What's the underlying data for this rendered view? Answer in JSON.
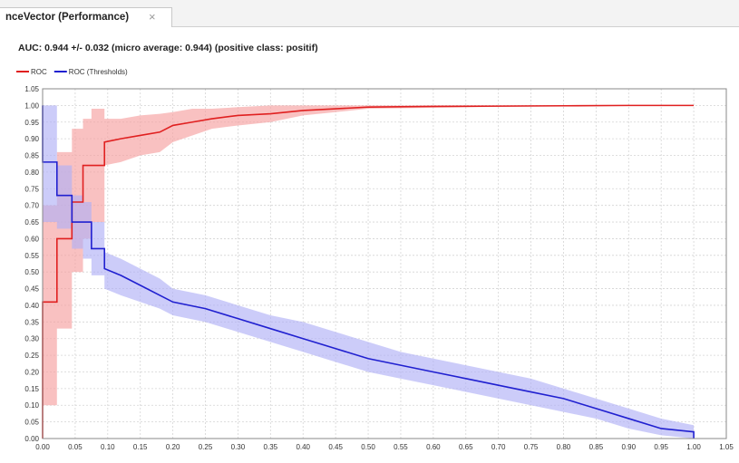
{
  "tab": {
    "title": "nceVector (Performance)",
    "close_icon": "×"
  },
  "chart_title": "AUC: 0.944 +/- 0.032 (micro average: 0.944) (positive class: positif)",
  "chart_data": {
    "type": "line",
    "title": "AUC: 0.944 +/- 0.032 (micro average: 0.944) (positive class: positif)",
    "xlim": [
      0.0,
      1.05
    ],
    "ylim": [
      0.0,
      1.05
    ],
    "x_ticks": [
      "0.00",
      "0.05",
      "0.10",
      "0.15",
      "0.20",
      "0.25",
      "0.30",
      "0.35",
      "0.40",
      "0.45",
      "0.50",
      "0.55",
      "0.60",
      "0.65",
      "0.70",
      "0.75",
      "0.80",
      "0.85",
      "0.90",
      "0.95",
      "1.00",
      "1.05"
    ],
    "y_ticks": [
      "0.00",
      "0.05",
      "0.10",
      "0.15",
      "0.20",
      "0.25",
      "0.30",
      "0.35",
      "0.40",
      "0.45",
      "0.50",
      "0.55",
      "0.60",
      "0.65",
      "0.70",
      "0.75",
      "0.80",
      "0.85",
      "0.90",
      "0.95",
      "1.00",
      "1.05"
    ],
    "grid": true,
    "legend_position": "top-left",
    "series": [
      {
        "name": "ROC",
        "color": "#e02020",
        "band_color": "#f6a0a0",
        "x": [
          0.0,
          0.0,
          0.022,
          0.022,
          0.045,
          0.045,
          0.062,
          0.062,
          0.075,
          0.075,
          0.095,
          0.095,
          0.12,
          0.15,
          0.18,
          0.2,
          0.23,
          0.26,
          0.3,
          0.35,
          0.4,
          0.45,
          0.5,
          0.6,
          0.7,
          0.8,
          0.9,
          1.0
        ],
        "y": [
          0.0,
          0.41,
          0.41,
          0.6,
          0.6,
          0.71,
          0.71,
          0.82,
          0.82,
          0.82,
          0.82,
          0.89,
          0.9,
          0.91,
          0.92,
          0.94,
          0.95,
          0.96,
          0.97,
          0.975,
          0.985,
          0.99,
          0.995,
          0.997,
          0.998,
          0.999,
          1.0,
          1.0
        ],
        "upper": [
          0.0,
          0.7,
          0.7,
          0.86,
          0.86,
          0.93,
          0.93,
          0.96,
          0.96,
          0.99,
          0.99,
          0.96,
          0.96,
          0.97,
          0.975,
          0.98,
          0.99,
          0.99,
          0.995,
          1.0,
          1.0,
          1.0,
          1.0,
          1.0,
          1.0,
          1.0,
          1.0,
          1.0
        ],
        "lower": [
          0.0,
          0.1,
          0.1,
          0.33,
          0.33,
          0.5,
          0.5,
          0.6,
          0.6,
          0.65,
          0.65,
          0.82,
          0.83,
          0.85,
          0.86,
          0.89,
          0.91,
          0.93,
          0.94,
          0.95,
          0.97,
          0.98,
          0.99,
          0.993,
          0.996,
          0.998,
          1.0,
          1.0
        ]
      },
      {
        "name": "ROC (Thresholds)",
        "color": "#2020d0",
        "band_color": "#b0b0f6",
        "x": [
          0.0,
          0.0,
          0.022,
          0.022,
          0.045,
          0.045,
          0.062,
          0.062,
          0.075,
          0.075,
          0.095,
          0.095,
          0.12,
          0.15,
          0.18,
          0.2,
          0.25,
          0.3,
          0.35,
          0.4,
          0.45,
          0.5,
          0.55,
          0.6,
          0.65,
          0.7,
          0.75,
          0.8,
          0.85,
          0.9,
          0.95,
          1.0,
          1.0
        ],
        "y": [
          1.0,
          0.83,
          0.83,
          0.73,
          0.73,
          0.65,
          0.65,
          0.65,
          0.65,
          0.57,
          0.57,
          0.51,
          0.49,
          0.46,
          0.43,
          0.41,
          0.39,
          0.36,
          0.33,
          0.3,
          0.27,
          0.24,
          0.22,
          0.2,
          0.18,
          0.16,
          0.14,
          0.12,
          0.09,
          0.06,
          0.03,
          0.02,
          0.0
        ],
        "upper": [
          1.0,
          1.0,
          1.0,
          0.82,
          0.82,
          0.73,
          0.73,
          0.71,
          0.71,
          0.65,
          0.65,
          0.56,
          0.54,
          0.51,
          0.48,
          0.45,
          0.43,
          0.4,
          0.37,
          0.35,
          0.32,
          0.29,
          0.26,
          0.24,
          0.22,
          0.2,
          0.18,
          0.15,
          0.12,
          0.09,
          0.06,
          0.04,
          0.0
        ],
        "lower": [
          1.0,
          0.65,
          0.65,
          0.63,
          0.63,
          0.57,
          0.57,
          0.54,
          0.54,
          0.49,
          0.49,
          0.45,
          0.43,
          0.41,
          0.39,
          0.37,
          0.35,
          0.32,
          0.29,
          0.26,
          0.23,
          0.2,
          0.18,
          0.16,
          0.14,
          0.12,
          0.1,
          0.08,
          0.06,
          0.03,
          0.01,
          0.0,
          0.0
        ]
      }
    ]
  }
}
